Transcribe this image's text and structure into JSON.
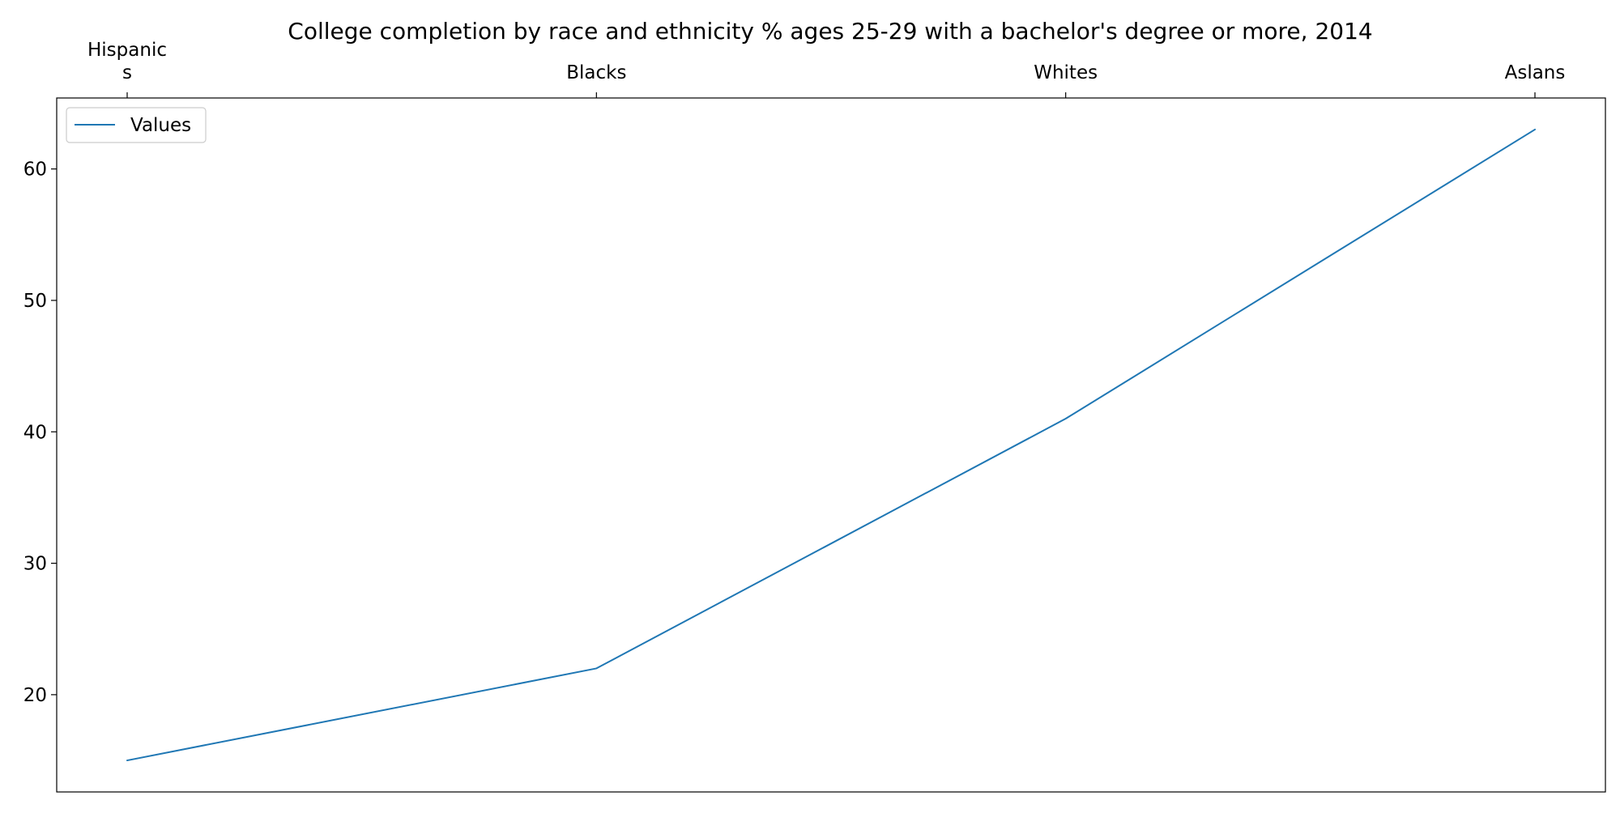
{
  "chart_data": {
    "type": "line",
    "title": "College completion by race and ethnicity % ages 25-29 with a bachelor's degree or more, 2014",
    "xlabel": "",
    "ylabel": "",
    "x_axis_position": "top",
    "categories": [
      [
        "Hispanic",
        "s"
      ],
      [
        "Blacks"
      ],
      [
        "Whites"
      ],
      [
        "Aslans"
      ]
    ],
    "series": [
      {
        "name": "Values",
        "values": [
          15,
          22,
          41,
          63
        ],
        "color": "#1f77b4"
      }
    ],
    "ylim": [
      12.6,
      65.4
    ],
    "yticks": [
      20,
      30,
      40,
      50,
      60
    ],
    "grid": false,
    "legend": {
      "position": "upper-left"
    }
  }
}
